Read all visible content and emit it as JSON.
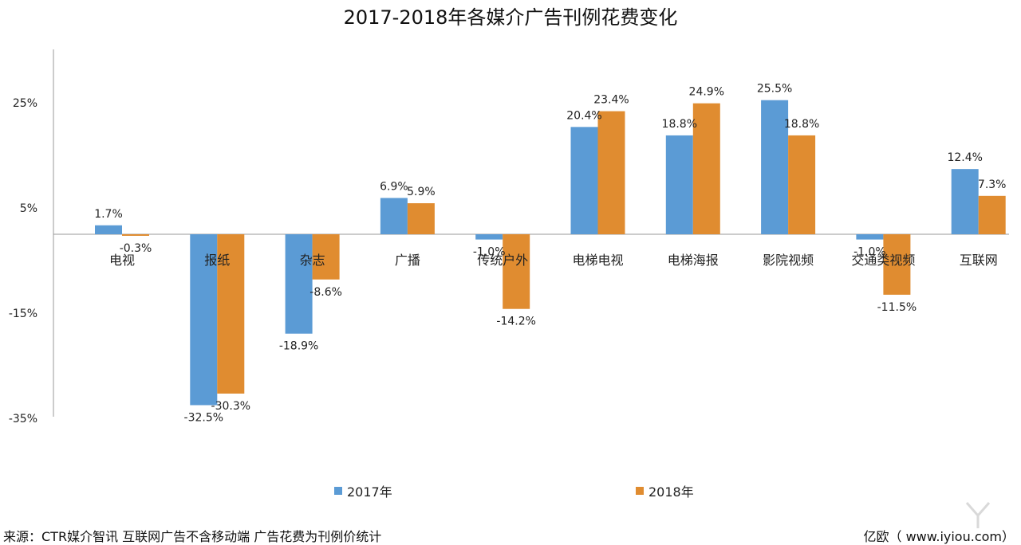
{
  "page": {
    "title": "2017-2018年各媒介广告刊例花费变化",
    "source": "来源：CTR媒介智讯 互联网广告不含移动端 广告花费为刊例价统计",
    "brand": "亿欧（ www.iyiou.com）"
  },
  "colors": {
    "series_2017": "#5B9BD5",
    "series_2018": "#E08C30",
    "axis": "#999999"
  },
  "chart_data": {
    "type": "bar",
    "title": "2017-2018年各媒介广告刊例花费变化",
    "categories": [
      "电视",
      "报纸",
      "杂志",
      "广播",
      "传统户外",
      "电梯电视",
      "电梯海报",
      "影院视频",
      "交通类视频",
      "互联网"
    ],
    "series": [
      {
        "name": "2017年",
        "values": [
          1.7,
          -32.5,
          -18.9,
          6.9,
          -1.0,
          20.4,
          18.8,
          25.5,
          -1.0,
          12.4
        ],
        "labels": [
          "1.7%",
          "-32.5%",
          "-18.9%",
          "6.9%",
          "-1.0%",
          "20.4%",
          "18.8%",
          "25.5%",
          "-1.0%",
          "12.4%"
        ]
      },
      {
        "name": "2018年",
        "values": [
          -0.3,
          -30.3,
          -8.6,
          5.9,
          -14.2,
          23.4,
          24.9,
          18.8,
          -11.5,
          7.3
        ],
        "labels": [
          "-0.3%",
          "-30.3%",
          "-8.6%",
          "5.9%",
          "-14.2%",
          "23.4%",
          "24.9%",
          "18.8%",
          "-11.5%",
          "7.3%"
        ]
      }
    ],
    "yticks": [
      25,
      5,
      -15,
      -35
    ],
    "ytick_labels": [
      "25%",
      "5%",
      "-15%",
      "-35%"
    ],
    "ylim": [
      -35,
      35
    ],
    "legend_position": "bottom",
    "grid": false
  }
}
